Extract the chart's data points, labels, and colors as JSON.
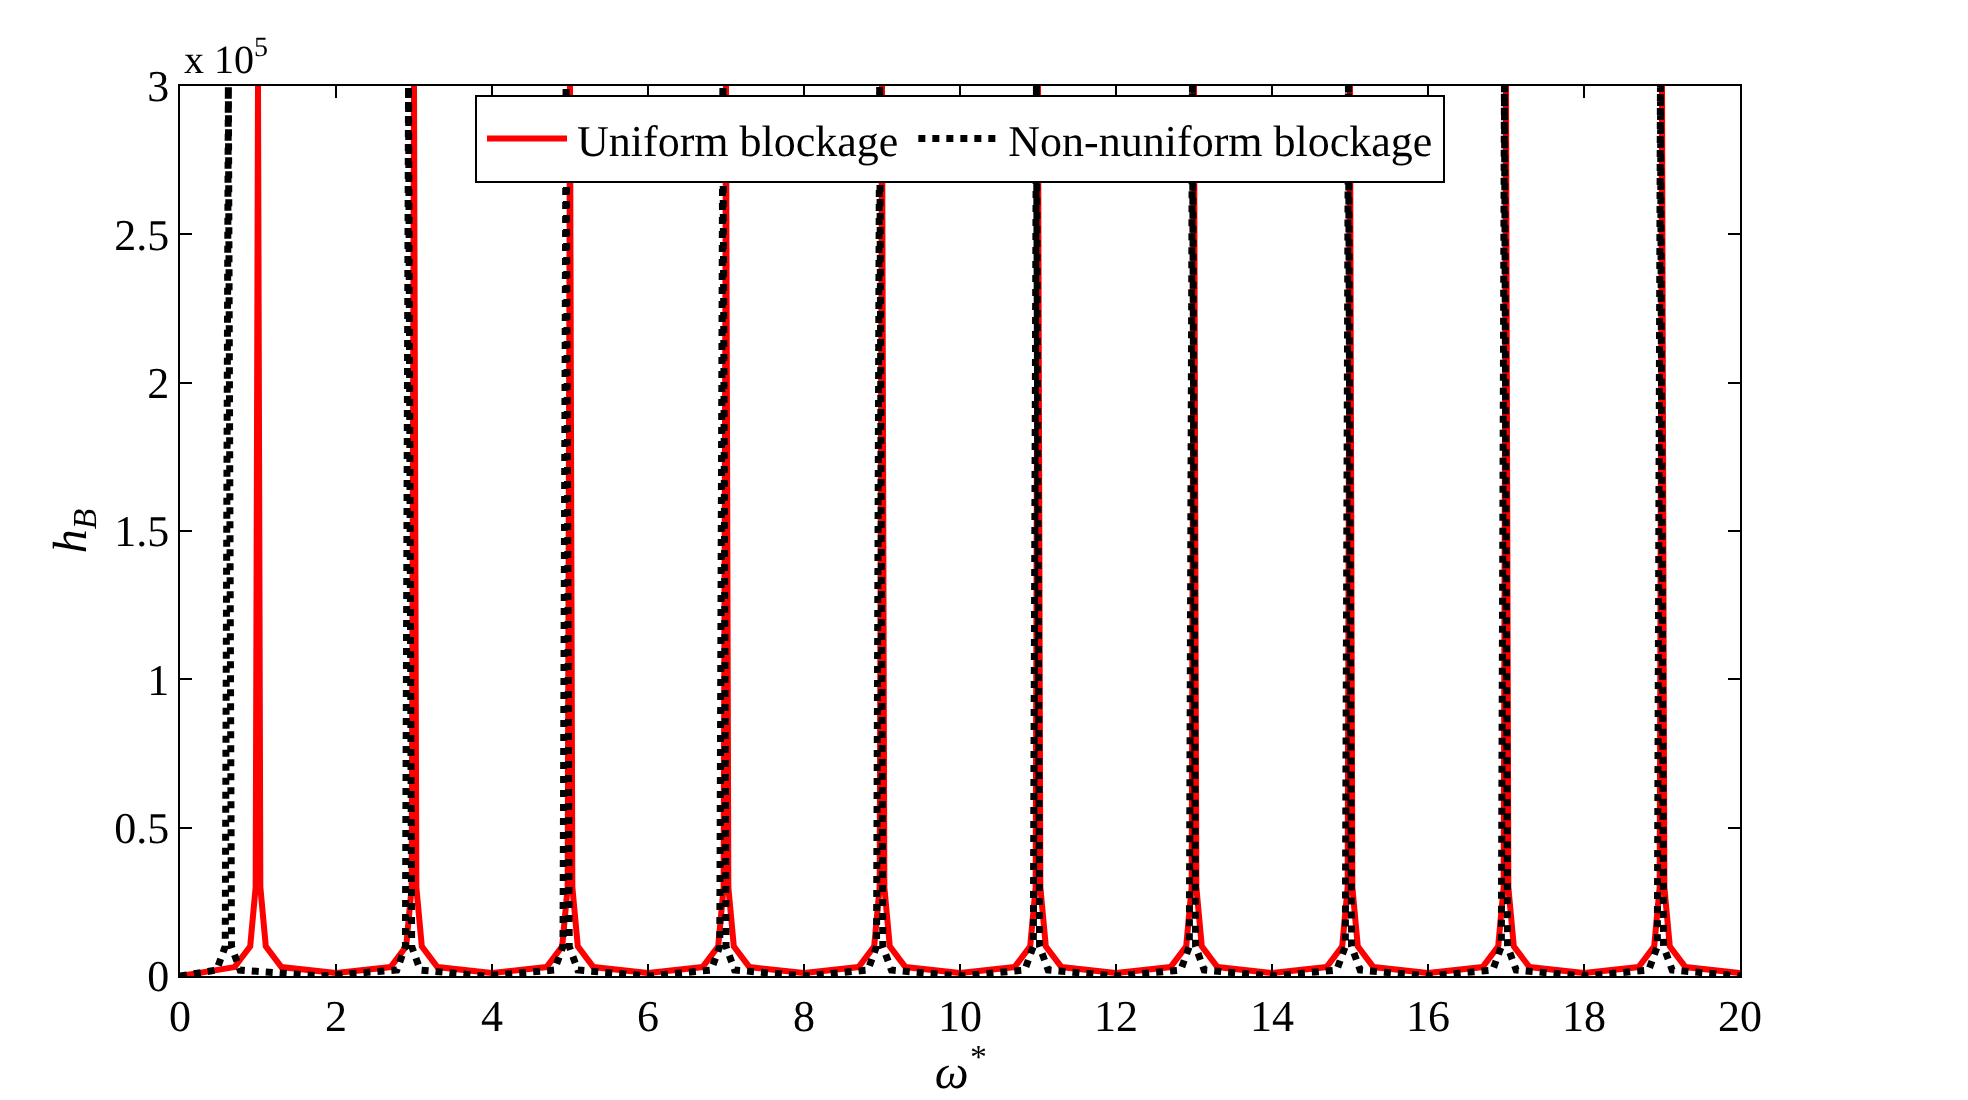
{
  "chart_data": {
    "type": "line",
    "xlabel": "ω$^{*}$",
    "ylabel": "h$_{B}$",
    "annotations": [
      "x 10$^{5}$"
    ],
    "xlim": [
      0,
      20
    ],
    "xticks": [
      0,
      2,
      4,
      6,
      8,
      10,
      12,
      14,
      16,
      18,
      20
    ],
    "ylim": [
      0,
      3
    ],
    "yticks": [
      0,
      0.5,
      1,
      1.5,
      2,
      2.5,
      3
    ],
    "legend": "top",
    "marker": "none",
    "series": [
      {
        "name": "Uniform blockage",
        "color": "#ff0000",
        "line_style": "solid",
        "x": [
          0,
          0.7,
          0.9,
          0.97,
          1,
          1.03,
          1.1,
          1.3,
          2,
          2.7,
          2.9,
          2.97,
          3,
          3.03,
          3.1,
          3.3,
          4,
          4.7,
          4.9,
          4.97,
          5,
          5.03,
          5.1,
          5.3,
          6,
          6.7,
          6.9,
          6.97,
          7,
          7.03,
          7.1,
          7.3,
          8,
          8.7,
          8.9,
          8.97,
          9,
          9.03,
          9.1,
          9.3,
          10,
          10.7,
          10.9,
          10.97,
          11,
          11.03,
          11.1,
          11.3,
          12,
          12.7,
          12.9,
          12.97,
          13,
          13.03,
          13.1,
          13.3,
          14,
          14.7,
          14.9,
          14.97,
          15,
          15.03,
          15.1,
          15.3,
          16,
          16.7,
          16.9,
          16.97,
          17,
          17.03,
          17.1,
          17.3,
          18,
          18.7,
          18.9,
          18.97,
          19,
          19.03,
          19.1,
          19.3,
          20
        ],
        "values": [
          0,
          0.03,
          0.1,
          0.3,
          3,
          0.3,
          0.1,
          0.03,
          0.01,
          0.03,
          0.1,
          0.3,
          3,
          0.3,
          0.1,
          0.03,
          0.01,
          0.03,
          0.1,
          0.3,
          3,
          0.3,
          0.1,
          0.03,
          0.01,
          0.03,
          0.1,
          0.3,
          3,
          0.3,
          0.1,
          0.03,
          0.01,
          0.03,
          0.1,
          0.3,
          3,
          0.3,
          0.1,
          0.03,
          0.01,
          0.03,
          0.1,
          0.3,
          3,
          0.3,
          0.1,
          0.03,
          0.01,
          0.03,
          0.1,
          0.3,
          3,
          0.3,
          0.1,
          0.03,
          0.01,
          0.03,
          0.1,
          0.3,
          3,
          0.3,
          0.1,
          0.03,
          0.01,
          0.03,
          0.1,
          0.3,
          3,
          0.3,
          0.1,
          0.03,
          0.01,
          0.03,
          0.1,
          0.3,
          3,
          0.3,
          0.1,
          0.03,
          0.01
        ]
      },
      {
        "name": "Non-nuniform blockage",
        "color": "#000000",
        "line_style": "dotted",
        "x": [
          0,
          0.47,
          0.58,
          0.62,
          0.66,
          0.77,
          1.8,
          2.78,
          2.89,
          2.93,
          2.97,
          3.08,
          3.9,
          4.8,
          4.91,
          4.95,
          4.99,
          5.1,
          6,
          6.81,
          6.92,
          6.96,
          7,
          7.11,
          8,
          8.82,
          8.93,
          8.97,
          9.01,
          9.12,
          10,
          10.83,
          10.94,
          10.98,
          11.02,
          11.13,
          12,
          12.83,
          12.94,
          12.98,
          13.02,
          13.13,
          14,
          14.83,
          14.94,
          14.98,
          15.02,
          15.13,
          16,
          16.83,
          16.94,
          16.98,
          17.02,
          17.13,
          18,
          18.83,
          18.94,
          18.98,
          19.02,
          19.13,
          20
        ],
        "values": [
          0,
          0.02,
          0.1,
          3,
          0.1,
          0.02,
          0,
          0.02,
          0.1,
          3,
          0.1,
          0.02,
          0,
          0.02,
          0.1,
          3,
          0.1,
          0.02,
          0,
          0.02,
          0.1,
          3,
          0.1,
          0.02,
          0,
          0.02,
          0.1,
          3,
          0.1,
          0.02,
          0,
          0.02,
          0.1,
          3,
          0.1,
          0.02,
          0,
          0.02,
          0.1,
          3,
          0.1,
          0.02,
          0,
          0.02,
          0.1,
          3,
          0.1,
          0.02,
          0,
          0.02,
          0.1,
          3,
          0.1,
          0.02,
          0,
          0.02,
          0.1,
          3,
          0.1,
          0.02,
          0
        ]
      }
    ]
  }
}
